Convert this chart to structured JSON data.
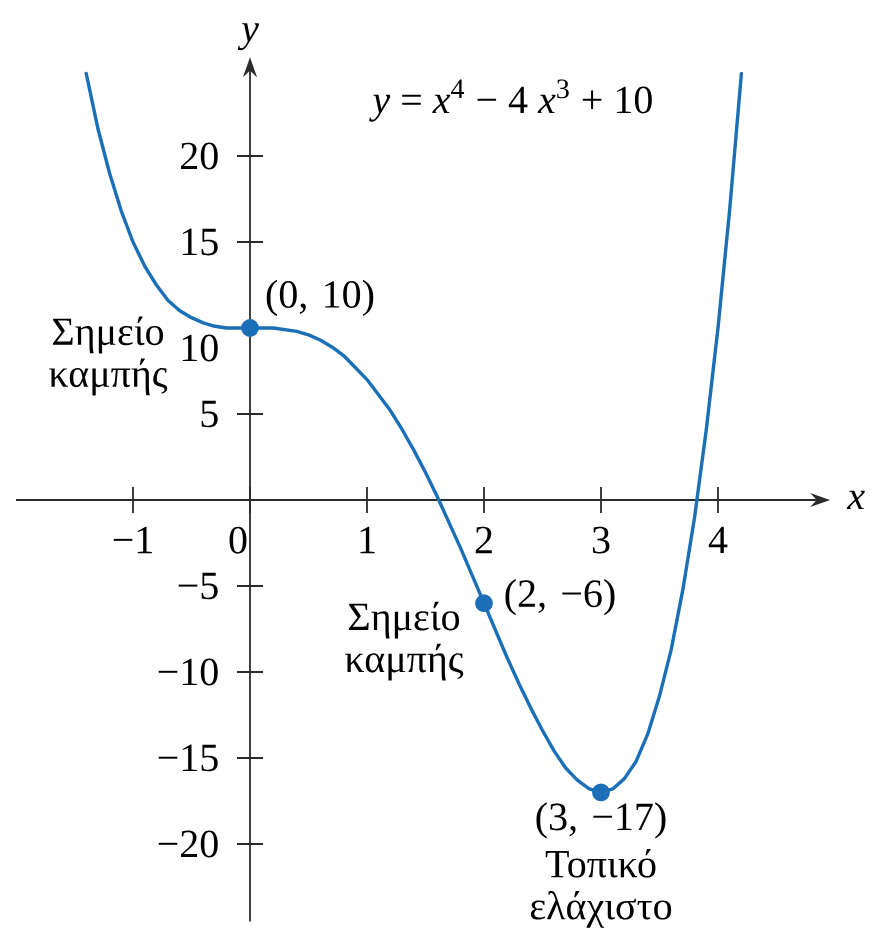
{
  "chart_data": {
    "type": "line",
    "title": "*y* = *x*$^{4}$ − 4 *x*$^{3}$ + 10",
    "xlabel": "x",
    "ylabel": "y",
    "xlim": [
      -2,
      4.85
    ],
    "ylim": [
      -24.5,
      25
    ],
    "xticks": [
      {
        "value": -1,
        "label": "−1"
      },
      0,
      1,
      2,
      3,
      4
    ],
    "yticks": [
      {
        "value": -20,
        "label": "−20"
      },
      {
        "value": -15,
        "label": "−15"
      },
      {
        "value": -10,
        "label": "−10"
      },
      {
        "value": -5,
        "label": "−5"
      },
      5,
      10,
      15,
      20
    ],
    "series": [
      {
        "color": "#1a6fb6",
        "marker": "none",
        "line_style": "solid",
        "x": [
          -1.4,
          -1.3,
          -1.2,
          -1.1,
          -1.0,
          -0.9,
          -0.8,
          -0.7,
          -0.6,
          -0.5,
          -0.4,
          -0.3,
          -0.2,
          -0.1,
          0,
          0.1,
          0.2,
          0.3,
          0.4,
          0.5,
          0.6,
          0.7,
          0.8,
          0.9,
          1.0,
          1.1,
          1.2,
          1.3,
          1.4,
          1.5,
          1.6,
          1.7,
          1.8,
          1.9,
          2.0,
          2.1,
          2.2,
          2.3,
          2.4,
          2.5,
          2.6,
          2.7,
          2.8,
          2.9,
          3.0,
          3.1,
          3.2,
          3.3,
          3.4,
          3.5,
          3.6,
          3.7,
          3.8,
          3.9,
          4.0,
          4.1,
          4.2
        ],
        "values": [
          24.8,
          21.6,
          19.0,
          16.8,
          15,
          13.6,
          12.5,
          11.6,
          11.0,
          10.6,
          10.3,
          10.1,
          10.0,
          10.0,
          10,
          10.0,
          10.0,
          9.9,
          9.8,
          9.6,
          9.3,
          8.9,
          8.4,
          7.7,
          7,
          6.1,
          5.2,
          4.1,
          2.9,
          1.6,
          0.2,
          -1.3,
          -2.8,
          -4.4,
          -6,
          -7.6,
          -9.2,
          -10.7,
          -12.1,
          -13.4,
          -14.6,
          -15.6,
          -16.3,
          -16.8,
          -17,
          -16.8,
          -16.2,
          -15.2,
          -13.6,
          -11.4,
          -8.7,
          -5.2,
          -1.0,
          4.1,
          10,
          16.9,
          24.8
        ]
      },
      {
        "type": "scatter",
        "color": "#1a6fb6",
        "marker": "circle",
        "x": [
          0,
          2,
          3
        ],
        "values": [
          10,
          -6,
          -17
        ]
      }
    ],
    "annotations": [
      {
        "text": "(0, 10)",
        "x": 0,
        "y": 10
      },
      {
        "text": "Σημείο καμπής",
        "x": 0,
        "y": 10
      },
      {
        "text": "(2, −6)",
        "x": 2,
        "y": -6
      },
      {
        "text": "Σημείο καμπής",
        "x": 2,
        "y": -6
      },
      {
        "text": "(3, −17)",
        "x": 3,
        "y": -17
      },
      {
        "text": "Τοπικό ελάχιστο",
        "x": 3,
        "y": -17
      }
    ]
  }
}
